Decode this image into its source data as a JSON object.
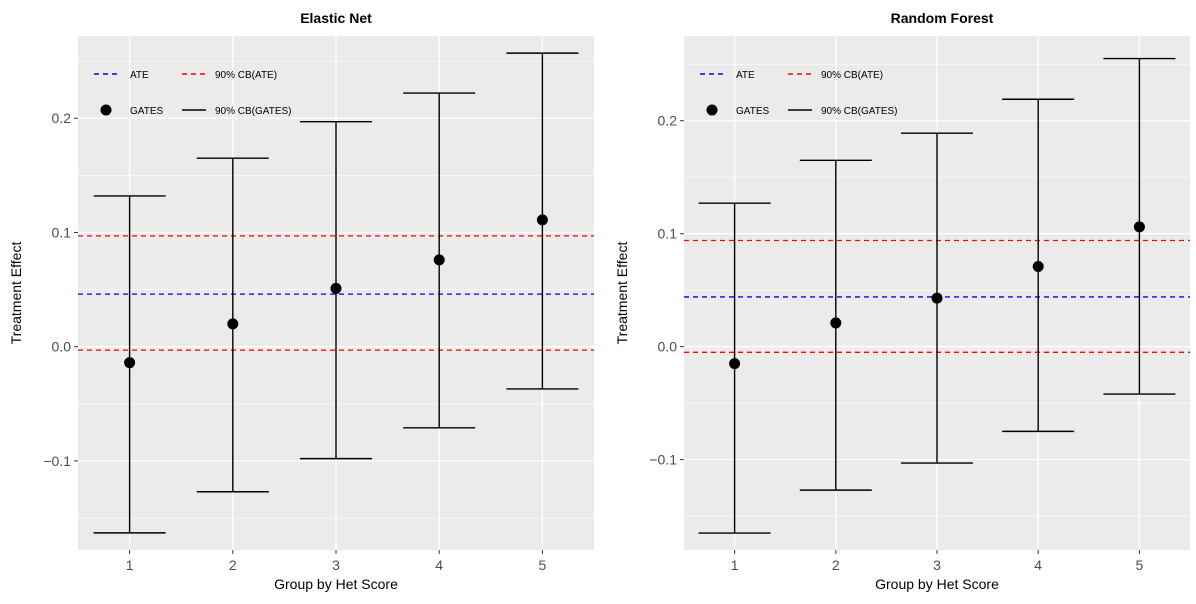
{
  "chart_data": [
    {
      "type": "scatter",
      "title": "Elastic Net",
      "xlabel": "Group by Het Score",
      "ylabel": "Treatment Effect",
      "x_ticks": [
        "1",
        "2",
        "3",
        "4",
        "5"
      ],
      "y_ticks": [
        -0.1,
        0.0,
        0.1,
        0.2
      ],
      "y_tick_labels": [
        "−0.1",
        "0.0",
        "0.1",
        "0.2"
      ],
      "xlim": [
        0.5,
        5.5
      ],
      "ylim": [
        -0.178,
        0.272
      ],
      "grid": true,
      "legend_position": "top-left",
      "legend": {
        "ate_label": "ATE",
        "cb_ate_label": "90% CB(ATE)",
        "gates_label": "GATES",
        "cb_gates_label": "90% CB(GATES)"
      },
      "ate": 0.046,
      "ate_cb": [
        -0.003,
        0.097
      ],
      "groups": [
        1,
        2,
        3,
        4,
        5
      ],
      "gates": [
        -0.014,
        0.02,
        0.051,
        0.076,
        0.111
      ],
      "gates_lower": [
        -0.163,
        -0.127,
        -0.098,
        -0.071,
        -0.037
      ],
      "gates_upper": [
        0.132,
        0.165,
        0.197,
        0.222,
        0.257
      ]
    },
    {
      "type": "scatter",
      "title": "Random Forest",
      "xlabel": "Group by Het Score",
      "ylabel": "Treatment Effect",
      "x_ticks": [
        "1",
        "2",
        "3",
        "4",
        "5"
      ],
      "y_ticks": [
        -0.1,
        0.0,
        0.1,
        0.2
      ],
      "y_tick_labels": [
        "−0.1",
        "0.0",
        "0.1",
        "0.2"
      ],
      "xlim": [
        0.5,
        5.5
      ],
      "ylim": [
        -0.18,
        0.275
      ],
      "grid": true,
      "legend_position": "top-left",
      "legend": {
        "ate_label": "ATE",
        "cb_ate_label": "90% CB(ATE)",
        "gates_label": "GATES",
        "cb_gates_label": "90% CB(GATES)"
      },
      "ate": 0.044,
      "ate_cb": [
        -0.005,
        0.094
      ],
      "groups": [
        1,
        2,
        3,
        4,
        5
      ],
      "gates": [
        -0.015,
        0.021,
        0.043,
        0.071,
        0.106
      ],
      "gates_lower": [
        -0.165,
        -0.127,
        -0.103,
        -0.075,
        -0.042
      ],
      "gates_upper": [
        0.127,
        0.165,
        0.189,
        0.219,
        0.255
      ]
    }
  ],
  "colors": {
    "panel_bg": "#ebebeb",
    "grid": "#ffffff",
    "ate": "#0000ff",
    "cb_ate": "#ff0000",
    "gates": "#000000",
    "axis_text": "#4d4d4d"
  }
}
